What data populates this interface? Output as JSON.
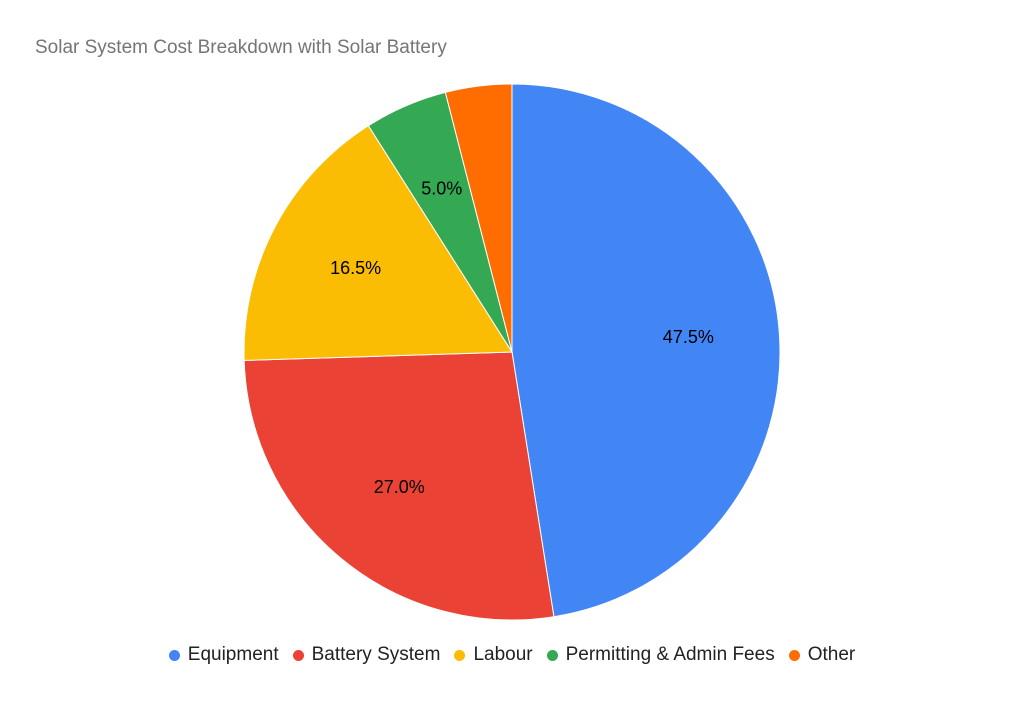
{
  "chart_data": {
    "type": "pie",
    "title": "Solar System Cost Breakdown with Solar Battery",
    "categories": [
      "Equipment",
      "Battery System",
      "Labour",
      "Permitting & Admin Fees",
      "Other"
    ],
    "values": [
      47.5,
      27.0,
      16.5,
      5.0,
      4.0
    ],
    "data_labels": [
      "47.5%",
      "27.0%",
      "16.5%",
      "5.0%",
      ""
    ],
    "colors": [
      "#4285F4",
      "#EA4335",
      "#FBBC04",
      "#34A853",
      "#FF6D01"
    ],
    "start_angle": "top",
    "direction": "clockwise",
    "legend_position": "bottom"
  }
}
